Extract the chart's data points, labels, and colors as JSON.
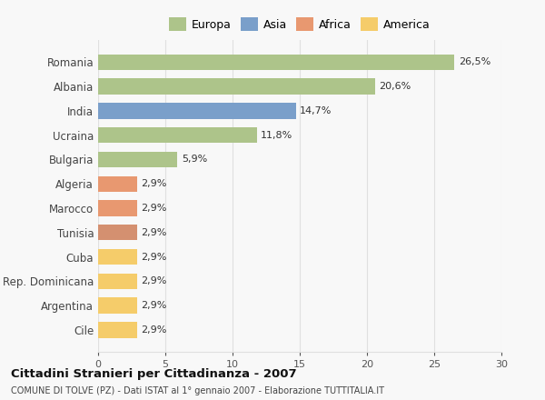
{
  "categories": [
    "Romania",
    "Albania",
    "India",
    "Ucraina",
    "Bulgaria",
    "Algeria",
    "Marocco",
    "Tunisia",
    "Cuba",
    "Rep. Dominicana",
    "Argentina",
    "Cile"
  ],
  "values": [
    26.5,
    20.6,
    14.7,
    11.8,
    5.9,
    2.9,
    2.9,
    2.9,
    2.9,
    2.9,
    2.9,
    2.9
  ],
  "labels": [
    "26,5%",
    "20,6%",
    "14,7%",
    "11,8%",
    "5,9%",
    "2,9%",
    "2,9%",
    "2,9%",
    "2,9%",
    "2,9%",
    "2,9%",
    "2,9%"
  ],
  "colors": [
    "#adc48a",
    "#adc48a",
    "#7a9fca",
    "#adc48a",
    "#adc48a",
    "#e89870",
    "#e89870",
    "#d49070",
    "#f5cc6a",
    "#f5cc6a",
    "#f5cc6a",
    "#f5cc6a"
  ],
  "legend": [
    {
      "label": "Europa",
      "color": "#adc48a"
    },
    {
      "label": "Asia",
      "color": "#7a9fca"
    },
    {
      "label": "Africa",
      "color": "#e89870"
    },
    {
      "label": "America",
      "color": "#f5cc6a"
    }
  ],
  "xlim": [
    0,
    30
  ],
  "xticks": [
    0,
    5,
    10,
    15,
    20,
    25,
    30
  ],
  "title": "Cittadini Stranieri per Cittadinanza - 2007",
  "subtitle": "COMUNE DI TOLVE (PZ) - Dati ISTAT al 1° gennaio 2007 - Elaborazione TUTTITALIA.IT",
  "background_color": "#f8f8f8",
  "grid_color": "#e0e0e0",
  "bar_height": 0.65,
  "label_fontsize": 8,
  "ytick_fontsize": 8.5,
  "xtick_fontsize": 8
}
